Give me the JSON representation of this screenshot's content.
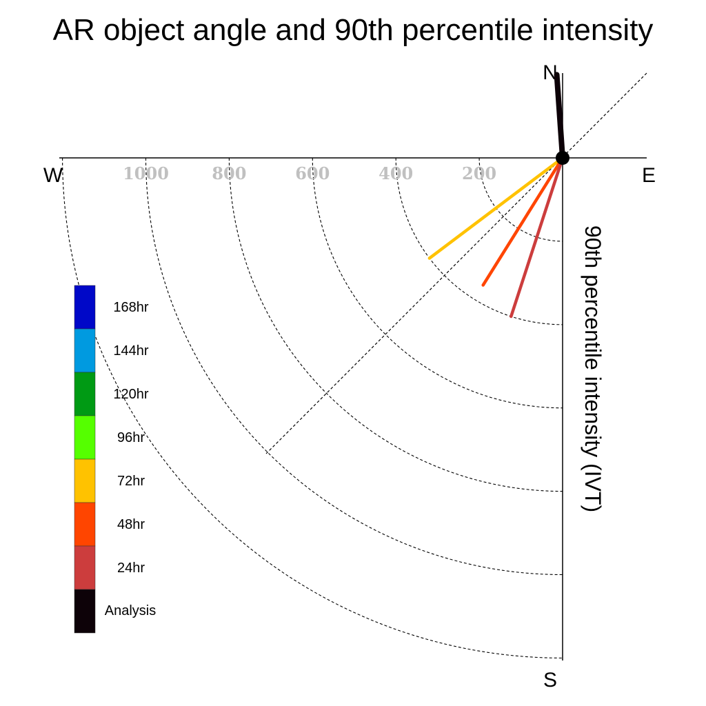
{
  "chart_data": {
    "type": "polar-vector",
    "title": "AR object angle and 90th percentile intensity",
    "compass": {
      "north": "N",
      "south": "S",
      "east": "E",
      "west": "W"
    },
    "radial_axis": {
      "label": "90th percentile intensity (IVT)",
      "range": [
        0,
        1200
      ],
      "tick_values": [
        200,
        400,
        600,
        800,
        1000
      ],
      "tick_labels": [
        "200",
        "400",
        "600",
        "800",
        "1000"
      ]
    },
    "series": [
      {
        "name": "Analysis",
        "color": "#0d0208",
        "angle_deg_from_north": 356,
        "intensity": 200
      },
      {
        "name": "24hr",
        "color": "#cc3d3d",
        "angle_deg_from_north": 198,
        "intensity": 400
      },
      {
        "name": "48hr",
        "color": "#ff4500",
        "angle_deg_from_north": 212,
        "intensity": 360
      },
      {
        "name": "72hr",
        "color": "#ffc200",
        "angle_deg_from_north": 233,
        "intensity": 400
      }
    ],
    "legend": {
      "placement": "left",
      "entries": [
        {
          "label": "168hr",
          "color": "#0008c8"
        },
        {
          "label": "144hr",
          "color": "#009ae0"
        },
        {
          "label": "120hr",
          "color": "#009a14"
        },
        {
          "label": "96hr",
          "color": "#55ff00"
        },
        {
          "label": "72hr",
          "color": "#ffc200"
        },
        {
          "label": "48hr",
          "color": "#ff4500"
        },
        {
          "label": "24hr",
          "color": "#cc3d3d"
        },
        {
          "label": "Analysis",
          "color": "#0d0208"
        }
      ]
    }
  }
}
